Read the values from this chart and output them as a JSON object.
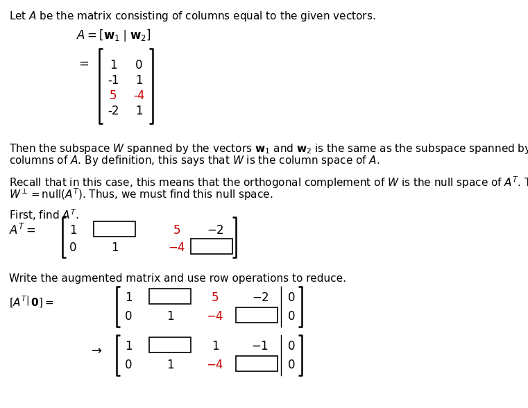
{
  "bg_color": "#ffffff",
  "text_color": "#000000",
  "red_color": "#cc0000",
  "fig_width": 7.61,
  "fig_height": 5.88,
  "dpi": 100
}
